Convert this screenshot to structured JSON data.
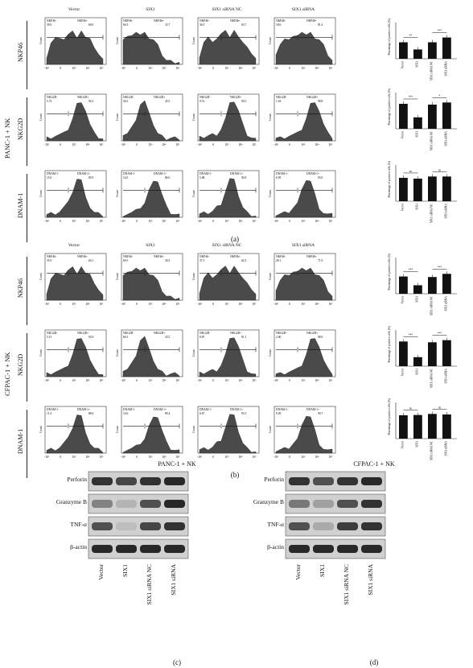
{
  "columns": [
    "Vector",
    "SIX1",
    "SIX1 siRNA NC",
    "SIX1 siRNA"
  ],
  "groups": [
    {
      "label": "PANC-1 + NK",
      "panel": "(a)",
      "rows": [
        {
          "marker": "NKP46",
          "neg": "NKP46-",
          "pos": "NKP46+",
          "values": [
            [
              "39.0",
              "60.0"
            ],
            [
              "66.3",
              "33.7"
            ],
            [
              "36.3",
              "63.7"
            ],
            [
              "18.6",
              "81.4"
            ]
          ]
        },
        {
          "marker": "NKG2D",
          "neg": "NKG2D-",
          "pos": "NKG2D+",
          "values": [
            [
              "5.72",
              "94.3"
            ],
            [
              "56.5",
              "43.5"
            ],
            [
              "9.51",
              "90.5"
            ],
            [
              "1.18",
              "98.8"
            ]
          ]
        },
        {
          "marker": "DNAM-1",
          "neg": "DNAM-1-",
          "pos": "DNAM-1+",
          "values": [
            [
              "15.0",
              "85.0"
            ],
            [
              "14.0",
              "86.0"
            ],
            [
              "5.08",
              "94.9"
            ],
            [
              "6.95",
              "93.0"
            ]
          ]
        }
      ]
    },
    {
      "label": "CFPAC-1 + NK",
      "panel": "(b)",
      "rows": [
        {
          "marker": "NKP46",
          "neg": "NKP46-",
          "pos": "NKP46+",
          "values": [
            [
              "35.9",
              "64.1"
            ],
            [
              "69.5",
              "30.5"
            ],
            [
              "37.5",
              "62.5"
            ],
            [
              "28.1",
              "71.9"
            ]
          ]
        },
        {
          "marker": "NKG2D",
          "neg": "NKG2D-",
          "pos": "NKG2D+",
          "values": [
            [
              "5.15",
              "94.9"
            ],
            [
              "66.5",
              "33.5"
            ],
            [
              "8.87",
              "91.1"
            ],
            [
              "2.00",
              "98.0"
            ]
          ]
        },
        {
          "marker": "DNAM-1",
          "neg": "DNAM-1-",
          "pos": "DNAM-1+",
          "values": [
            [
              "11.4",
              "88.6"
            ],
            [
              "10.6",
              "89.4"
            ],
            [
              "6.67",
              "93.3"
            ],
            [
              "9.29",
              "90.7"
            ]
          ]
        }
      ]
    }
  ],
  "axis": {
    "count_label": "Count",
    "ticks": [
      "-10³",
      "0",
      "10³",
      "10⁴",
      "10⁵"
    ]
  },
  "bar_ylabel": "Percentage of positive cells (%)",
  "chart_data": [
    {
      "type": "bar",
      "group": "PANC-1 + NK",
      "marker": "NKP46",
      "categories": [
        "Vector",
        "SIX1",
        "SIX1 siRNA NC",
        "SIX1 siRNA"
      ],
      "values": [
        62,
        35,
        62,
        80
      ],
      "ylim": [
        0,
        100
      ],
      "significance": [
        [
          "Vector",
          "SIX1",
          "**"
        ],
        [
          "SIX1 siRNA NC",
          "SIX1 siRNA",
          "***"
        ]
      ]
    },
    {
      "type": "bar",
      "group": "PANC-1 + NK",
      "marker": "NKG2D",
      "categories": [
        "Vector",
        "SIX1",
        "SIX1 siRNA NC",
        "SIX1 siRNA"
      ],
      "values": [
        94,
        43,
        91,
        99
      ],
      "ylim": [
        0,
        100
      ],
      "significance": [
        [
          "Vector",
          "SIX1",
          "***"
        ],
        [
          "SIX1 siRNA NC",
          "SIX1 siRNA",
          "*"
        ]
      ]
    },
    {
      "type": "bar",
      "group": "PANC-1 + NK",
      "marker": "DNAM-1",
      "categories": [
        "Vector",
        "SIX1",
        "SIX1 siRNA NC",
        "SIX1 siRNA"
      ],
      "values": [
        88,
        85,
        93,
        93
      ],
      "ylim": [
        0,
        100
      ],
      "significance": [
        [
          "Vector",
          "SIX1",
          "ns"
        ],
        [
          "SIX1 siRNA NC",
          "SIX1 siRNA",
          "ns"
        ]
      ]
    },
    {
      "type": "bar",
      "group": "CFPAC-1 + NK",
      "marker": "NKP46",
      "categories": [
        "Vector",
        "SIX1",
        "SIX1 siRNA NC",
        "SIX1 siRNA"
      ],
      "values": [
        65,
        32,
        63,
        75
      ],
      "ylim": [
        0,
        100
      ],
      "significance": [
        [
          "Vector",
          "SIX1",
          "***"
        ],
        [
          "SIX1 siRNA NC",
          "SIX1 siRNA",
          "***"
        ]
      ]
    },
    {
      "type": "bar",
      "group": "CFPAC-1 + NK",
      "marker": "NKG2D",
      "categories": [
        "Vector",
        "SIX1",
        "SIX1 siRNA NC",
        "SIX1 siRNA"
      ],
      "values": [
        93,
        34,
        90,
        98
      ],
      "ylim": [
        0,
        100
      ],
      "significance": [
        [
          "Vector",
          "SIX1",
          "***"
        ],
        [
          "SIX1 siRNA NC",
          "SIX1 siRNA",
          "***"
        ]
      ]
    },
    {
      "type": "bar",
      "group": "CFPAC-1 + NK",
      "marker": "DNAM-1",
      "categories": [
        "Vector",
        "SIX1",
        "SIX1 siRNA NC",
        "SIX1 siRNA"
      ],
      "values": [
        88,
        89,
        93,
        91
      ],
      "ylim": [
        0,
        100
      ],
      "significance": [
        [
          "Vector",
          "SIX1",
          "ns"
        ],
        [
          "SIX1 siRNA NC",
          "SIX1 siRNA",
          "ns"
        ]
      ]
    }
  ],
  "western": {
    "proteins": [
      "Perforin",
      "Granzyme B",
      "TNF-α",
      "β-actin"
    ],
    "blots": [
      {
        "title": "PANC-1 + NK",
        "panel": "(c)",
        "lanes": [
          "Vector",
          "SIX1",
          "SIX1 siRNA NC",
          "SIX1 siRNA"
        ],
        "intensity": [
          [
            0.85,
            0.75,
            0.85,
            0.9
          ],
          [
            0.45,
            0.2,
            0.7,
            0.9
          ],
          [
            0.7,
            0.15,
            0.75,
            0.85
          ],
          [
            0.9,
            0.9,
            0.9,
            0.9
          ]
        ]
      },
      {
        "title": "CFPAC-1 + NK",
        "panel": "(d)",
        "lanes": [
          "Vector",
          "SIX1",
          "SIX1 siRNA NC",
          "SIX1 siRNA"
        ],
        "intensity": [
          [
            0.85,
            0.7,
            0.85,
            0.9
          ],
          [
            0.5,
            0.3,
            0.7,
            0.85
          ],
          [
            0.7,
            0.25,
            0.8,
            0.85
          ],
          [
            0.9,
            0.9,
            0.9,
            0.9
          ]
        ]
      }
    ]
  }
}
